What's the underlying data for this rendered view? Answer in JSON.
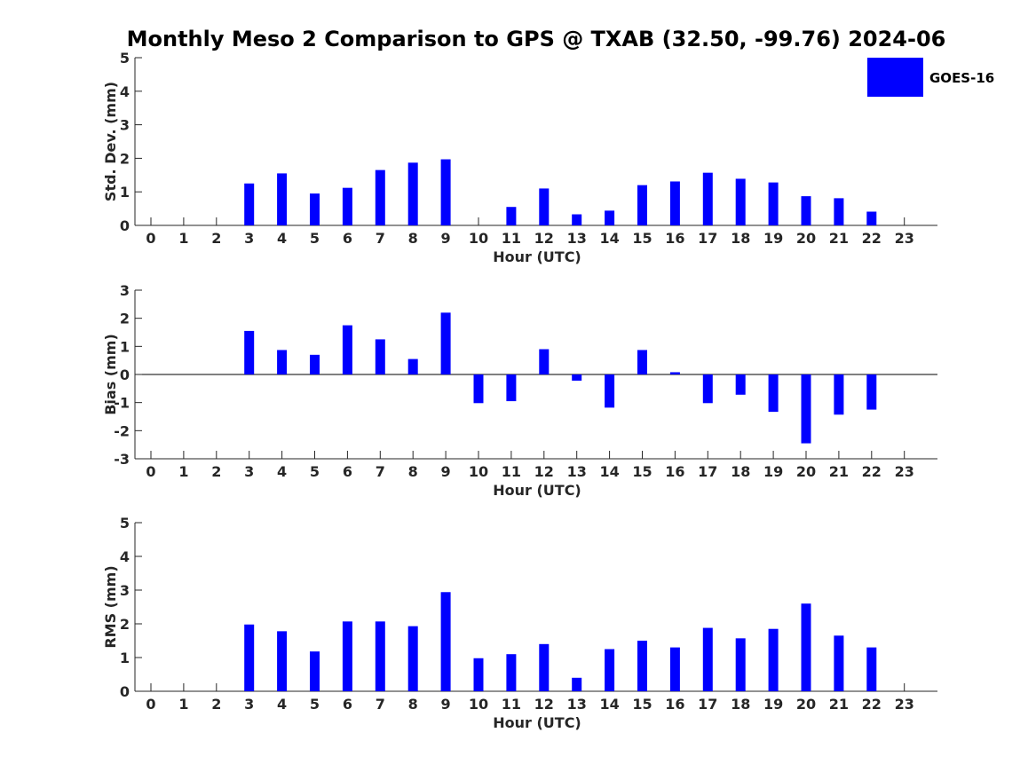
{
  "title": "Monthly Meso 2 Comparison to GPS @ TXAB (32.50, -99.76) 2024-06",
  "legend": {
    "label": "GOES-16",
    "color": "#0000ff"
  },
  "chart_data": [
    {
      "type": "bar",
      "ylabel": "Std. Dev. (mm)",
      "xlabel": "Hour (UTC)",
      "ylim": [
        0,
        5
      ],
      "yticks": [
        0,
        1,
        2,
        3,
        4,
        5
      ],
      "categories": [
        "0",
        "1",
        "2",
        "3",
        "4",
        "5",
        "6",
        "7",
        "8",
        "9",
        "10",
        "11",
        "12",
        "13",
        "14",
        "15",
        "16",
        "17",
        "18",
        "19",
        "20",
        "21",
        "22",
        "23"
      ],
      "series": [
        {
          "name": "GOES-16",
          "values": [
            null,
            null,
            null,
            1.25,
            1.55,
            0.95,
            1.12,
            1.65,
            1.87,
            1.97,
            null,
            0.55,
            1.1,
            0.33,
            0.44,
            1.2,
            1.31,
            1.57,
            1.39,
            1.28,
            0.87,
            0.81,
            0.41,
            null
          ]
        }
      ],
      "legend": "top-right",
      "grid": false
    },
    {
      "type": "bar",
      "ylabel": "Bias (mm)",
      "xlabel": "Hour (UTC)",
      "ylim": [
        -3,
        3
      ],
      "yticks": [
        -3,
        -2,
        -1,
        0,
        1,
        2,
        3
      ],
      "categories": [
        "0",
        "1",
        "2",
        "3",
        "4",
        "5",
        "6",
        "7",
        "8",
        "9",
        "10",
        "11",
        "12",
        "13",
        "14",
        "15",
        "16",
        "17",
        "18",
        "19",
        "20",
        "21",
        "22",
        "23"
      ],
      "series": [
        {
          "name": "GOES-16",
          "values": [
            null,
            null,
            null,
            1.55,
            0.87,
            0.7,
            1.75,
            1.25,
            0.55,
            2.2,
            -1.02,
            -0.95,
            0.9,
            -0.22,
            -1.18,
            0.87,
            0.08,
            -1.02,
            -0.72,
            -1.33,
            -2.45,
            -1.43,
            -1.25,
            null
          ]
        }
      ],
      "grid": false
    },
    {
      "type": "bar",
      "ylabel": "RMS (mm)",
      "xlabel": "Hour (UTC)",
      "ylim": [
        0,
        5
      ],
      "yticks": [
        0,
        1,
        2,
        3,
        4,
        5
      ],
      "categories": [
        "0",
        "1",
        "2",
        "3",
        "4",
        "5",
        "6",
        "7",
        "8",
        "9",
        "10",
        "11",
        "12",
        "13",
        "14",
        "15",
        "16",
        "17",
        "18",
        "19",
        "20",
        "21",
        "22",
        "23"
      ],
      "series": [
        {
          "name": "GOES-16",
          "values": [
            null,
            null,
            null,
            1.98,
            1.78,
            1.18,
            2.07,
            2.07,
            1.93,
            2.94,
            0.98,
            1.1,
            1.4,
            0.4,
            1.25,
            1.5,
            1.3,
            1.88,
            1.57,
            1.85,
            2.6,
            1.65,
            1.3,
            null
          ]
        }
      ],
      "grid": false
    }
  ]
}
